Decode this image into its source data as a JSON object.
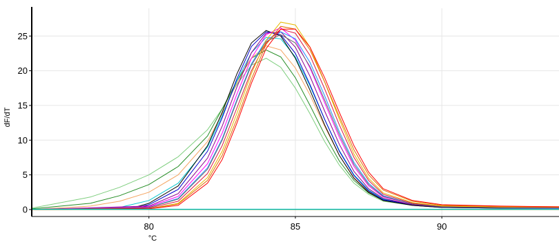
{
  "chart_data": {
    "type": "line",
    "title": "",
    "xlabel": "°C",
    "ylabel": "dF/dT",
    "xlim": [
      76,
      94
    ],
    "ylim": [
      -1,
      29
    ],
    "x_ticks": [
      80,
      85,
      90
    ],
    "y_ticks": [
      0,
      5,
      10,
      15,
      20,
      25
    ],
    "grid": true,
    "legend": "none",
    "series_color_list": [
      "#ff0000",
      "#e07000",
      "#e6b800",
      "#228b22",
      "#7ccd7c",
      "#00c5cd",
      "#1e90ff",
      "#0000cd",
      "#ff00ff",
      "#dc143c",
      "#8b008b",
      "#000000",
      "#696969",
      "#f4a460"
    ],
    "series": [
      {
        "color": "#7ccd7c",
        "points": [
          [
            76,
            0.2
          ],
          [
            78,
            1.8
          ],
          [
            79,
            3.2
          ],
          [
            80,
            5.0
          ],
          [
            81,
            7.6
          ],
          [
            82,
            11.5
          ],
          [
            82.5,
            14.5
          ],
          [
            83,
            18.0
          ],
          [
            83.5,
            20.8
          ],
          [
            84,
            21.8
          ],
          [
            84.5,
            20.5
          ],
          [
            85,
            17.5
          ],
          [
            85.5,
            13.8
          ],
          [
            86,
            9.8
          ],
          [
            86.5,
            6.4
          ],
          [
            87,
            3.8
          ],
          [
            87.5,
            2.2
          ],
          [
            88,
            1.2
          ],
          [
            89,
            0.6
          ],
          [
            90,
            0.3
          ],
          [
            92,
            0.2
          ],
          [
            94,
            0.2
          ]
        ]
      },
      {
        "color": "#228b22",
        "points": [
          [
            76,
            0.1
          ],
          [
            78,
            0.9
          ],
          [
            79,
            2.0
          ],
          [
            80,
            3.6
          ],
          [
            81,
            6.2
          ],
          [
            82,
            10.6
          ],
          [
            82.5,
            14.5
          ],
          [
            83,
            18.5
          ],
          [
            83.5,
            21.8
          ],
          [
            84,
            23.0
          ],
          [
            84.5,
            22.0
          ],
          [
            85,
            19.0
          ],
          [
            85.5,
            15.0
          ],
          [
            86,
            10.8
          ],
          [
            86.5,
            7.0
          ],
          [
            87,
            4.2
          ],
          [
            87.5,
            2.4
          ],
          [
            88,
            1.3
          ],
          [
            89,
            0.6
          ],
          [
            90,
            0.3
          ],
          [
            92,
            0.2
          ],
          [
            94,
            0.2
          ]
        ]
      },
      {
        "color": "#f4a460",
        "points": [
          [
            76,
            0.0
          ],
          [
            78,
            0.5
          ],
          [
            79,
            1.2
          ],
          [
            80,
            2.5
          ],
          [
            81,
            5.0
          ],
          [
            82,
            9.8
          ],
          [
            82.5,
            13.8
          ],
          [
            83,
            18.2
          ],
          [
            83.5,
            21.8
          ],
          [
            84,
            23.6
          ],
          [
            84.5,
            23.0
          ],
          [
            85,
            20.4
          ],
          [
            85.5,
            16.5
          ],
          [
            86,
            12.0
          ],
          [
            86.5,
            7.8
          ],
          [
            87,
            4.6
          ],
          [
            87.5,
            2.6
          ],
          [
            88,
            1.4
          ],
          [
            89,
            0.6
          ],
          [
            90,
            0.3
          ],
          [
            92,
            0.2
          ],
          [
            94,
            0.2
          ]
        ]
      },
      {
        "color": "#00c5cd",
        "points": [
          [
            76,
            0.0
          ],
          [
            79,
            0.3
          ],
          [
            80,
            1.3
          ],
          [
            81,
            3.8
          ],
          [
            82,
            9.0
          ],
          [
            82.5,
            13.5
          ],
          [
            83,
            18.5
          ],
          [
            83.5,
            22.6
          ],
          [
            84,
            24.8
          ],
          [
            84.5,
            24.6
          ],
          [
            85,
            22.0
          ],
          [
            85.5,
            17.8
          ],
          [
            86,
            13.0
          ],
          [
            86.5,
            8.5
          ],
          [
            87,
            5.0
          ],
          [
            87.5,
            2.8
          ],
          [
            88,
            1.5
          ],
          [
            89,
            0.7
          ],
          [
            90,
            0.35
          ],
          [
            92,
            0.2
          ],
          [
            94,
            0.2
          ]
        ]
      },
      {
        "color": "#000000",
        "points": [
          [
            76,
            0.0
          ],
          [
            79.5,
            0.3
          ],
          [
            80,
            0.9
          ],
          [
            81,
            3.4
          ],
          [
            82,
            9.2
          ],
          [
            82.5,
            14.0
          ],
          [
            83,
            19.5
          ],
          [
            83.5,
            24.0
          ],
          [
            84,
            25.8
          ],
          [
            84.5,
            25.0
          ],
          [
            85,
            21.8
          ],
          [
            85.5,
            17.2
          ],
          [
            86,
            12.2
          ],
          [
            86.5,
            7.8
          ],
          [
            87,
            4.5
          ],
          [
            87.5,
            2.5
          ],
          [
            88,
            1.3
          ],
          [
            89,
            0.6
          ],
          [
            90,
            0.3
          ],
          [
            92,
            0.2
          ],
          [
            94,
            0.2
          ]
        ]
      },
      {
        "color": "#0000cd",
        "points": [
          [
            76,
            0.0
          ],
          [
            79.5,
            0.2
          ],
          [
            80,
            0.7
          ],
          [
            81,
            2.9
          ],
          [
            82,
            8.4
          ],
          [
            82.5,
            13.2
          ],
          [
            83,
            18.8
          ],
          [
            83.5,
            23.5
          ],
          [
            84,
            25.6
          ],
          [
            84.5,
            25.2
          ],
          [
            85,
            22.5
          ],
          [
            85.5,
            18.0
          ],
          [
            86,
            13.0
          ],
          [
            86.5,
            8.4
          ],
          [
            87,
            4.9
          ],
          [
            87.5,
            2.7
          ],
          [
            88,
            1.4
          ],
          [
            89,
            0.7
          ],
          [
            90,
            0.35
          ],
          [
            92,
            0.25
          ],
          [
            94,
            0.2
          ]
        ]
      },
      {
        "color": "#8b008b",
        "points": [
          [
            76,
            0.0
          ],
          [
            80,
            0.5
          ],
          [
            81,
            2.3
          ],
          [
            82,
            7.4
          ],
          [
            82.5,
            12.0
          ],
          [
            83,
            17.6
          ],
          [
            83.5,
            22.6
          ],
          [
            84,
            25.4
          ],
          [
            84.5,
            25.6
          ],
          [
            85,
            23.4
          ],
          [
            85.5,
            19.2
          ],
          [
            86,
            14.2
          ],
          [
            86.5,
            9.4
          ],
          [
            87,
            5.5
          ],
          [
            87.5,
            3.0
          ],
          [
            88,
            1.6
          ],
          [
            89,
            0.7
          ],
          [
            90,
            0.4
          ],
          [
            92,
            0.3
          ],
          [
            94,
            0.3
          ]
        ]
      },
      {
        "color": "#ff00ff",
        "points": [
          [
            76,
            0.0
          ],
          [
            80,
            0.4
          ],
          [
            81,
            1.9
          ],
          [
            82,
            6.6
          ],
          [
            82.5,
            11.0
          ],
          [
            83,
            16.6
          ],
          [
            83.5,
            21.8
          ],
          [
            84,
            25.2
          ],
          [
            84.5,
            26.2
          ],
          [
            85,
            24.4
          ],
          [
            85.5,
            20.4
          ],
          [
            86,
            15.4
          ],
          [
            86.5,
            10.4
          ],
          [
            87,
            6.2
          ],
          [
            87.5,
            3.4
          ],
          [
            88,
            1.8
          ],
          [
            89,
            0.8
          ],
          [
            90,
            0.45
          ],
          [
            92,
            0.3
          ],
          [
            94,
            0.3
          ]
        ]
      },
      {
        "color": "#1e90ff",
        "points": [
          [
            76,
            0.0
          ],
          [
            80,
            0.3
          ],
          [
            81,
            1.6
          ],
          [
            82,
            6.0
          ],
          [
            82.5,
            10.2
          ],
          [
            83,
            15.8
          ],
          [
            83.5,
            21.0
          ],
          [
            84,
            24.4
          ],
          [
            84.5,
            25.6
          ],
          [
            85,
            24.6
          ],
          [
            85.5,
            21.2
          ],
          [
            86,
            16.4
          ],
          [
            86.5,
            11.2
          ],
          [
            87,
            6.8
          ],
          [
            87.5,
            3.8
          ],
          [
            88,
            2.0
          ],
          [
            89,
            0.8
          ],
          [
            90,
            0.45
          ],
          [
            92,
            0.3
          ],
          [
            94,
            0.3
          ]
        ]
      },
      {
        "color": "#696969",
        "points": [
          [
            76,
            0.0
          ],
          [
            80,
            0.3
          ],
          [
            81,
            1.5
          ],
          [
            82,
            5.8
          ],
          [
            82.5,
            10.0
          ],
          [
            83,
            15.6
          ],
          [
            83.5,
            20.8
          ],
          [
            84,
            24.2
          ],
          [
            84.5,
            25.2
          ],
          [
            85,
            24.0
          ],
          [
            85.5,
            20.6
          ],
          [
            86,
            15.8
          ],
          [
            86.5,
            10.8
          ],
          [
            87,
            6.5
          ],
          [
            87.5,
            3.6
          ],
          [
            88,
            1.9
          ],
          [
            89,
            0.8
          ],
          [
            90,
            0.4
          ],
          [
            92,
            0.3
          ],
          [
            94,
            0.3
          ]
        ]
      },
      {
        "color": "#dc143c",
        "points": [
          [
            76,
            0.0
          ],
          [
            80,
            0.2
          ],
          [
            81,
            1.2
          ],
          [
            82,
            5.2
          ],
          [
            82.5,
            9.2
          ],
          [
            83,
            14.6
          ],
          [
            83.5,
            20.0
          ],
          [
            84,
            24.0
          ],
          [
            84.5,
            26.0
          ],
          [
            85,
            25.4
          ],
          [
            85.5,
            22.2
          ],
          [
            86,
            17.4
          ],
          [
            86.5,
            12.2
          ],
          [
            87,
            7.5
          ],
          [
            87.5,
            4.2
          ],
          [
            88,
            2.2
          ],
          [
            89,
            0.9
          ],
          [
            90,
            0.5
          ],
          [
            92,
            0.35
          ],
          [
            94,
            0.3
          ]
        ]
      },
      {
        "color": "#e6b800",
        "points": [
          [
            76,
            0.0
          ],
          [
            80,
            0.1
          ],
          [
            81,
            0.9
          ],
          [
            82,
            4.6
          ],
          [
            82.5,
            8.4
          ],
          [
            83,
            13.8
          ],
          [
            83.5,
            19.6
          ],
          [
            84,
            24.4
          ],
          [
            84.5,
            27.0
          ],
          [
            85,
            26.6
          ],
          [
            85.5,
            23.4
          ],
          [
            86,
            18.4
          ],
          [
            86.5,
            13.0
          ],
          [
            87,
            8.0
          ],
          [
            87.5,
            4.5
          ],
          [
            88,
            2.4
          ],
          [
            89,
            1.0
          ],
          [
            90,
            0.5
          ],
          [
            92,
            0.35
          ],
          [
            94,
            0.3
          ]
        ]
      },
      {
        "color": "#e07000",
        "points": [
          [
            76,
            0.0
          ],
          [
            80,
            0.1
          ],
          [
            81,
            0.8
          ],
          [
            82,
            4.2
          ],
          [
            82.5,
            7.8
          ],
          [
            83,
            13.0
          ],
          [
            83.5,
            18.8
          ],
          [
            84,
            23.8
          ],
          [
            84.5,
            26.4
          ],
          [
            85,
            26.0
          ],
          [
            85.5,
            23.0
          ],
          [
            86,
            18.4
          ],
          [
            86.5,
            13.4
          ],
          [
            87,
            8.6
          ],
          [
            87.5,
            5.0
          ],
          [
            88,
            2.8
          ],
          [
            89,
            1.2
          ],
          [
            90,
            0.6
          ],
          [
            92,
            0.45
          ],
          [
            94,
            0.4
          ]
        ]
      },
      {
        "color": "#ff0000",
        "points": [
          [
            76,
            0.0
          ],
          [
            80,
            0.1
          ],
          [
            81,
            0.6
          ],
          [
            82,
            3.8
          ],
          [
            82.5,
            7.2
          ],
          [
            83,
            12.4
          ],
          [
            83.5,
            18.2
          ],
          [
            84,
            23.2
          ],
          [
            84.5,
            26.0
          ],
          [
            85,
            26.0
          ],
          [
            85.5,
            23.4
          ],
          [
            86,
            19.0
          ],
          [
            86.5,
            14.0
          ],
          [
            87,
            9.2
          ],
          [
            87.5,
            5.4
          ],
          [
            88,
            3.0
          ],
          [
            89,
            1.3
          ],
          [
            90,
            0.7
          ],
          [
            92,
            0.5
          ],
          [
            94,
            0.4
          ]
        ]
      },
      {
        "color": "#228b22",
        "points": [
          [
            76,
            0.0
          ],
          [
            94,
            0.0
          ]
        ]
      },
      {
        "color": "#00c5cd",
        "points": [
          [
            76,
            0.05
          ],
          [
            94,
            0.05
          ]
        ]
      }
    ]
  }
}
